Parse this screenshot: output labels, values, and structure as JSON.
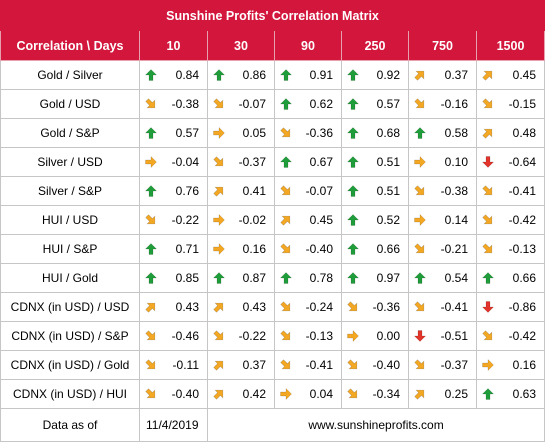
{
  "title": "Sunshine Profits' Correlation Matrix",
  "header": [
    "Correlation \\ Days",
    "10",
    "30",
    "90",
    "250",
    "750",
    "1500"
  ],
  "colors": {
    "up": "#1f9d3a",
    "down": "#e2342b",
    "diag": "#f3a722",
    "header_bg": "#d2163c"
  },
  "rows": [
    {
      "label": "Gold / Silver",
      "cells": [
        {
          "v": "0.84",
          "d": "up"
        },
        {
          "v": "0.86",
          "d": "up"
        },
        {
          "v": "0.91",
          "d": "up"
        },
        {
          "v": "0.92",
          "d": "up"
        },
        {
          "v": "0.37",
          "d": "ne"
        },
        {
          "v": "0.45",
          "d": "ne"
        }
      ]
    },
    {
      "label": "Gold / USD",
      "cells": [
        {
          "v": "-0.38",
          "d": "se"
        },
        {
          "v": "-0.07",
          "d": "se"
        },
        {
          "v": "0.62",
          "d": "up"
        },
        {
          "v": "0.57",
          "d": "up"
        },
        {
          "v": "-0.16",
          "d": "se"
        },
        {
          "v": "-0.15",
          "d": "se"
        }
      ]
    },
    {
      "label": "Gold / S&P",
      "cells": [
        {
          "v": "0.57",
          "d": "up"
        },
        {
          "v": "0.05",
          "d": "right"
        },
        {
          "v": "-0.36",
          "d": "se"
        },
        {
          "v": "0.68",
          "d": "up"
        },
        {
          "v": "0.58",
          "d": "up"
        },
        {
          "v": "0.48",
          "d": "ne"
        }
      ]
    },
    {
      "label": "Silver / USD",
      "cells": [
        {
          "v": "-0.04",
          "d": "right"
        },
        {
          "v": "-0.37",
          "d": "se"
        },
        {
          "v": "0.67",
          "d": "up"
        },
        {
          "v": "0.51",
          "d": "up"
        },
        {
          "v": "0.10",
          "d": "right"
        },
        {
          "v": "-0.64",
          "d": "down"
        }
      ]
    },
    {
      "label": "Silver / S&P",
      "cells": [
        {
          "v": "0.76",
          "d": "up"
        },
        {
          "v": "0.41",
          "d": "ne"
        },
        {
          "v": "-0.07",
          "d": "se"
        },
        {
          "v": "0.51",
          "d": "up"
        },
        {
          "v": "-0.38",
          "d": "se"
        },
        {
          "v": "-0.41",
          "d": "se"
        }
      ]
    },
    {
      "label": "HUI / USD",
      "cells": [
        {
          "v": "-0.22",
          "d": "se"
        },
        {
          "v": "-0.02",
          "d": "right"
        },
        {
          "v": "0.45",
          "d": "ne"
        },
        {
          "v": "0.52",
          "d": "up"
        },
        {
          "v": "0.14",
          "d": "right"
        },
        {
          "v": "-0.42",
          "d": "se"
        }
      ]
    },
    {
      "label": "HUI / S&P",
      "cells": [
        {
          "v": "0.71",
          "d": "up"
        },
        {
          "v": "0.16",
          "d": "right"
        },
        {
          "v": "-0.40",
          "d": "se"
        },
        {
          "v": "0.66",
          "d": "up"
        },
        {
          "v": "-0.21",
          "d": "se"
        },
        {
          "v": "-0.13",
          "d": "se"
        }
      ]
    },
    {
      "label": "HUI / Gold",
      "cells": [
        {
          "v": "0.85",
          "d": "up"
        },
        {
          "v": "0.87",
          "d": "up"
        },
        {
          "v": "0.78",
          "d": "up"
        },
        {
          "v": "0.97",
          "d": "up"
        },
        {
          "v": "0.54",
          "d": "up"
        },
        {
          "v": "0.66",
          "d": "up"
        }
      ]
    },
    {
      "label": "CDNX (in USD) / USD",
      "cells": [
        {
          "v": "0.43",
          "d": "ne"
        },
        {
          "v": "0.43",
          "d": "ne"
        },
        {
          "v": "-0.24",
          "d": "se"
        },
        {
          "v": "-0.36",
          "d": "se"
        },
        {
          "v": "-0.41",
          "d": "se"
        },
        {
          "v": "-0.86",
          "d": "down"
        }
      ]
    },
    {
      "label": "CDNX (in USD) / S&P",
      "cells": [
        {
          "v": "-0.46",
          "d": "se"
        },
        {
          "v": "-0.22",
          "d": "se"
        },
        {
          "v": "-0.13",
          "d": "se"
        },
        {
          "v": "0.00",
          "d": "right"
        },
        {
          "v": "-0.51",
          "d": "down"
        },
        {
          "v": "-0.42",
          "d": "se"
        }
      ]
    },
    {
      "label": "CDNX (in USD) / Gold",
      "cells": [
        {
          "v": "-0.11",
          "d": "se"
        },
        {
          "v": "0.37",
          "d": "ne"
        },
        {
          "v": "-0.41",
          "d": "se"
        },
        {
          "v": "-0.40",
          "d": "se"
        },
        {
          "v": "-0.37",
          "d": "se"
        },
        {
          "v": "0.16",
          "d": "right"
        }
      ]
    },
    {
      "label": "CDNX (in USD) / HUI",
      "cells": [
        {
          "v": "-0.40",
          "d": "se"
        },
        {
          "v": "0.42",
          "d": "ne"
        },
        {
          "v": "0.04",
          "d": "right"
        },
        {
          "v": "-0.34",
          "d": "se"
        },
        {
          "v": "0.25",
          "d": "ne"
        },
        {
          "v": "0.63",
          "d": "up"
        }
      ]
    }
  ],
  "footer": {
    "label": "Data as of",
    "date": "11/4/2019",
    "site": "www.sunshineprofits.com"
  }
}
